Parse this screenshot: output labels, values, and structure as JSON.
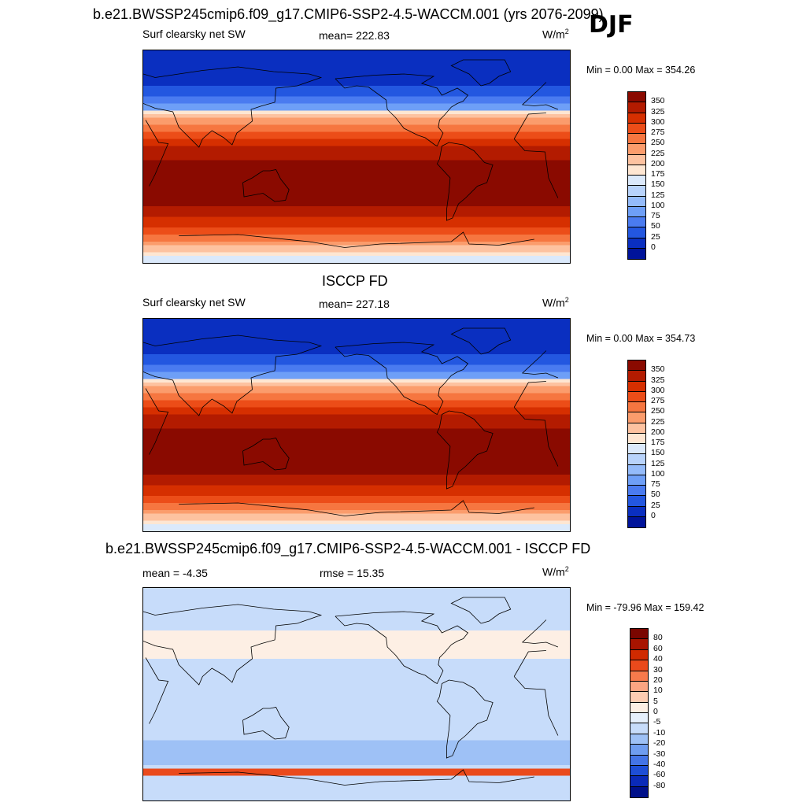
{
  "header": {
    "title": "b.e21.BWSSP245cmip6.f09_g17.CMIP6-SSP2-4.5-WACCM.001 (yrs 2076-2099)",
    "season": "DJF"
  },
  "panels": [
    {
      "id": "model",
      "left_label": "Surf clearsky net SW",
      "center_label": "mean= 222.83",
      "unit": "W/m",
      "unit_sup": "2",
      "minmax": "Min =   0.00 Max = 354.26",
      "colorbar": {
        "ticks": [
          "350",
          "325",
          "300",
          "275",
          "250",
          "225",
          "200",
          "175",
          "150",
          "125",
          "100",
          "75",
          "50",
          "25",
          "0"
        ],
        "colors": [
          "#8a0a00",
          "#b31b00",
          "#d62f00",
          "#ec4d18",
          "#f67640",
          "#fb9c6c",
          "#fdc2a0",
          "#fee6d2",
          "#dbe9fb",
          "#b8d3fb",
          "#94bbfa",
          "#6e9ff7",
          "#4a7bf0",
          "#2357e0",
          "#0a2fc0",
          "#00139a"
        ]
      },
      "map_shows": "model field"
    },
    {
      "id": "obs",
      "title": "ISCCP FD",
      "left_label": "Surf clearsky net SW",
      "center_label": "mean= 227.18",
      "unit": "W/m",
      "unit_sup": "2",
      "minmax": "Min =   0.00 Max = 354.73",
      "colorbar": {
        "ticks": [
          "350",
          "325",
          "300",
          "275",
          "250",
          "225",
          "200",
          "175",
          "150",
          "125",
          "100",
          "75",
          "50",
          "25",
          "0"
        ],
        "colors": [
          "#8a0a00",
          "#b31b00",
          "#d62f00",
          "#ec4d18",
          "#f67640",
          "#fb9c6c",
          "#fdc2a0",
          "#fee6d2",
          "#dbe9fb",
          "#b8d3fb",
          "#94bbfa",
          "#6e9ff7",
          "#4a7bf0",
          "#2357e0",
          "#0a2fc0",
          "#00139a"
        ]
      }
    },
    {
      "id": "diff",
      "title": "b.e21.BWSSP245cmip6.f09_g17.CMIP6-SSP2-4.5-WACCM.001 - ISCCP FD",
      "left_label": "mean =  -4.35",
      "center_label": "rmse =  15.35",
      "unit": "W/m",
      "unit_sup": "2",
      "minmax": "Min = -79.96 Max = 159.42",
      "colorbar": {
        "ticks": [
          "80",
          "60",
          "40",
          "30",
          "20",
          "10",
          "5",
          "0",
          "-5",
          "-10",
          "-20",
          "-30",
          "-40",
          "-60",
          "-80"
        ],
        "colors": [
          "#7a0600",
          "#a81400",
          "#d02a00",
          "#ea4a1c",
          "#f77a4c",
          "#fba582",
          "#fdccb2",
          "#fdefe4",
          "#e6f0fc",
          "#c7dcfa",
          "#9ec1f6",
          "#6f9df0",
          "#4474e6",
          "#1e4ed6",
          "#0a2ab8",
          "#00108a"
        ]
      }
    }
  ],
  "colors": {
    "land_outline": "#000000",
    "background": "#ffffff"
  }
}
